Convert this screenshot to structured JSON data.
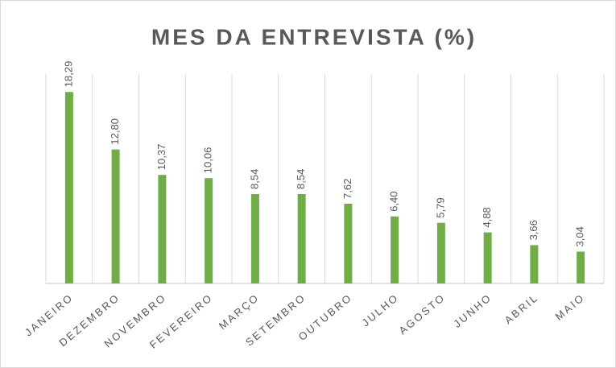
{
  "chart_data": {
    "type": "bar",
    "title": "MES DA ENTREVISTA (%)",
    "categories": [
      "JANEIRO",
      "DEZEMBRO",
      "NOVEMBRO",
      "FEVEREIRO",
      "MARÇO",
      "SETEMBRO",
      "OUTUBRO",
      "JULHO",
      "AGOSTO",
      "JUNHO",
      "ABRIL",
      "MAIO"
    ],
    "values": [
      18.29,
      12.8,
      10.37,
      10.06,
      8.54,
      8.54,
      7.62,
      6.4,
      5.79,
      4.88,
      3.66,
      3.04
    ],
    "value_labels": [
      "18,29",
      "12,80",
      "10,37",
      "10,06",
      "8,54",
      "8,54",
      "7,62",
      "6,40",
      "5,79",
      "4,88",
      "3,66",
      "3,04"
    ],
    "color": "#70ad47",
    "ylim": [
      0,
      20
    ]
  }
}
